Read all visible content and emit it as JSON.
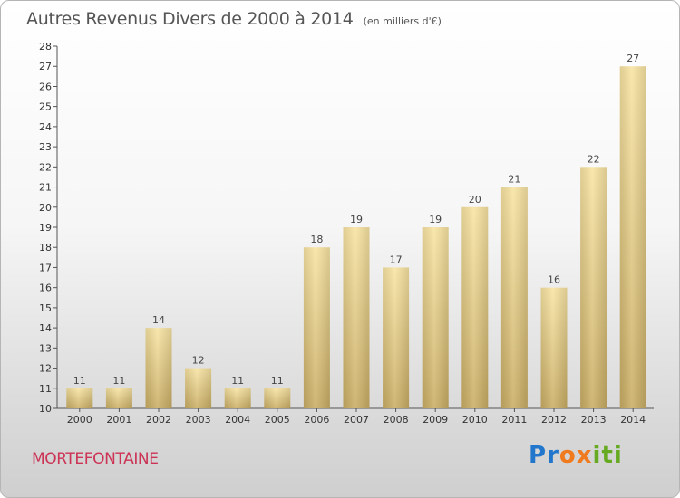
{
  "title": "Autres Revenus Divers de 2000 à 2014",
  "subtitle": "(en milliers d'€)",
  "commune": "MORTEFONTAINE",
  "brand": {
    "letters": [
      {
        "char": "P",
        "color": "#2277cc"
      },
      {
        "char": "r",
        "color": "#2277cc"
      },
      {
        "char": "o",
        "color": "#f07b1e"
      },
      {
        "char": "x",
        "color": "#f07b1e"
      },
      {
        "char": "i",
        "color": "#66aa22"
      },
      {
        "char": "t",
        "color": "#66aa22"
      },
      {
        "char": "i",
        "color": "#66aa22"
      }
    ]
  },
  "colors": {
    "bar_light": "#f8e4a3",
    "bar_dark": "#c9ad64",
    "commune_text": "#cc3355"
  },
  "chart_data": {
    "type": "bar",
    "categories": [
      "2000",
      "2001",
      "2002",
      "2003",
      "2004",
      "2005",
      "2006",
      "2007",
      "2008",
      "2009",
      "2010",
      "2011",
      "2012",
      "2013",
      "2014"
    ],
    "values": [
      11,
      11,
      14,
      12,
      11,
      11,
      18,
      19,
      17,
      19,
      20,
      21,
      16,
      22,
      27
    ],
    "data_labels": [
      "11",
      "11",
      "14",
      "12",
      "11",
      "11",
      "18",
      "19",
      "17",
      "19",
      "20",
      "21",
      "16",
      "22",
      "27"
    ],
    "y_ticks": [
      10,
      11,
      12,
      13,
      14,
      15,
      16,
      17,
      18,
      19,
      20,
      21,
      22,
      23,
      24,
      25,
      26,
      27,
      28
    ],
    "ylim": [
      10,
      28
    ],
    "grid": false
  }
}
